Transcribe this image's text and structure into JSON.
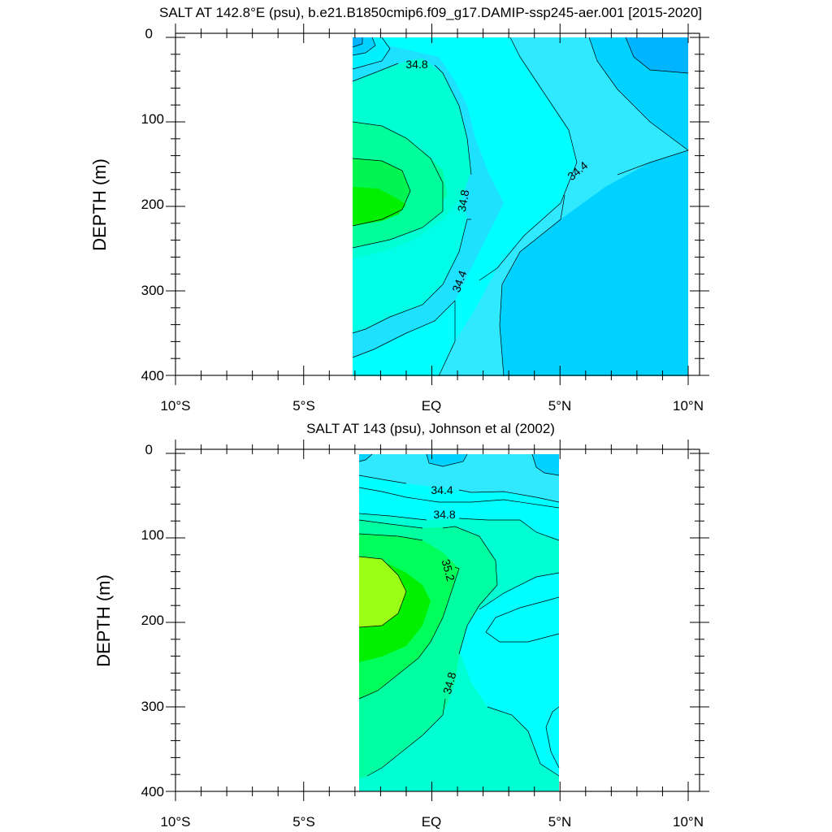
{
  "chart_data": [
    {
      "type": "heatmap",
      "title": "SALT AT 142.8°E (psu), b.e21.B1850cmip6.f09_g17.DAMIP-ssp245-aer.001 [2015-2020]",
      "ylabel": "DEPTH (m)",
      "xlabel": "",
      "xlim": [
        -10,
        10
      ],
      "ylim": [
        400,
        0
      ],
      "x_tick_labels": [
        "10°S",
        "5°S",
        "EQ",
        "5°N",
        "10°N"
      ],
      "y_tick_labels": [
        "0",
        "100",
        "200",
        "300",
        "400"
      ],
      "data_extent_x": [
        -3,
        10
      ],
      "contour_labels": [
        {
          "text": "34.8",
          "x": -0.6,
          "y": 35
        },
        {
          "text": "34.8",
          "x": 1.3,
          "y": 195
        },
        {
          "text": "34.4",
          "x": 5.6,
          "y": 160
        },
        {
          "text": "34.4",
          "x": 1.2,
          "y": 290
        }
      ]
    },
    {
      "type": "heatmap",
      "title": "SALT AT 143 (psu), Johnson et al (2002)",
      "ylabel": "DEPTH (m)",
      "xlabel": "",
      "xlim": [
        -10,
        10
      ],
      "ylim": [
        400,
        0
      ],
      "x_tick_labels": [
        "10°S",
        "5°S",
        "EQ",
        "5°N",
        "10°N"
      ],
      "y_tick_labels": [
        "0",
        "100",
        "200",
        "300",
        "400"
      ],
      "data_extent_x": [
        -2.8,
        5
      ],
      "contour_labels": [
        {
          "text": "34.4",
          "x": -0.5,
          "y": 47
        },
        {
          "text": "34.8",
          "x": 0.5,
          "y": 76
        },
        {
          "text": "35.2",
          "x": 0.4,
          "y": 145
        },
        {
          "text": "34.8",
          "x": 0.8,
          "y": 272
        }
      ]
    }
  ]
}
